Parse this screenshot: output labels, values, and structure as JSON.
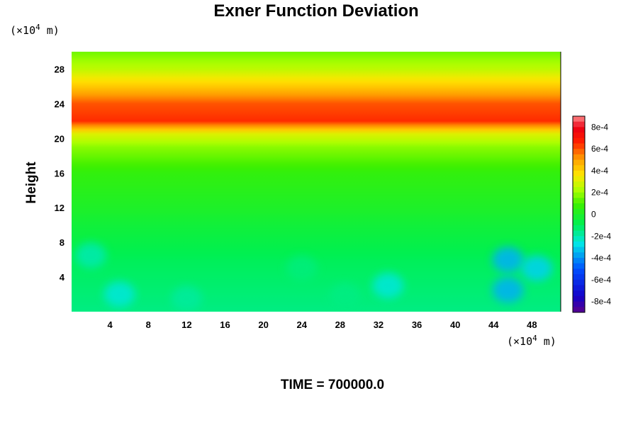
{
  "chart_data": {
    "type": "heatmap",
    "title": "Exner Function Deviation",
    "ylabel": "Height",
    "xlabel": "",
    "x_unit": "(×10",
    "x_unit_exp": "4",
    "x_unit_tail": " m)",
    "y_unit": "(×10",
    "y_unit_exp": "4",
    "y_unit_tail": " m)",
    "xlim": [
      0,
      51
    ],
    "ylim": [
      0,
      30
    ],
    "x_ticks": [
      "4",
      "8",
      "12",
      "16",
      "20",
      "24",
      "28",
      "32",
      "36",
      "40",
      "44",
      "48"
    ],
    "x_tick_values": [
      4,
      8,
      12,
      16,
      20,
      24,
      28,
      32,
      36,
      40,
      44,
      48
    ],
    "y_ticks": [
      "4",
      "8",
      "12",
      "16",
      "20",
      "24",
      "28"
    ],
    "y_tick_values": [
      4,
      8,
      12,
      16,
      20,
      24,
      28
    ],
    "colorbar": {
      "min": -0.0009,
      "max": 0.0009,
      "tick_labels": [
        "8e-4",
        "6e-4",
        "4e-4",
        "2e-4",
        "0",
        "-2e-4",
        "-4e-4",
        "-6e-4",
        "-8e-4"
      ],
      "tick_values": [
        0.0008,
        0.0006,
        0.0004,
        0.0002,
        0,
        -0.0002,
        -0.0004,
        -0.0006,
        -0.0008
      ]
    },
    "profile": [
      {
        "height": 0,
        "value": -0.00015
      },
      {
        "height": 6,
        "value": -0.0001
      },
      {
        "height": 10,
        "value": -4e-05
      },
      {
        "height": 12,
        "value": 0.0
      },
      {
        "height": 16,
        "value": 6e-05
      },
      {
        "height": 19,
        "value": 0.00018
      },
      {
        "height": 20.5,
        "value": 0.0003
      },
      {
        "height": 22,
        "value": 0.00065
      },
      {
        "height": 24,
        "value": 0.0006
      },
      {
        "height": 26,
        "value": 0.00042
      },
      {
        "height": 28,
        "value": 0.00025
      },
      {
        "height": 30,
        "value": 0.00015
      }
    ],
    "anomalies": [
      {
        "x": 5,
        "y": 2,
        "value": -0.00025
      },
      {
        "x": 2,
        "y": 6.5,
        "value": -0.0002
      },
      {
        "x": 12,
        "y": 1.5,
        "value": -0.00018
      },
      {
        "x": 33,
        "y": 3,
        "value": -0.00025
      },
      {
        "x": 45.5,
        "y": 6,
        "value": -0.00035
      },
      {
        "x": 45.5,
        "y": 2.5,
        "value": -0.00035
      },
      {
        "x": 48.5,
        "y": 5,
        "value": -0.0003
      },
      {
        "x": 28.5,
        "y": 1.8,
        "value": -0.00015
      },
      {
        "x": 24,
        "y": 5,
        "value": -0.00014
      }
    ]
  },
  "footer": {
    "time_label": "TIME = 700000.0"
  }
}
